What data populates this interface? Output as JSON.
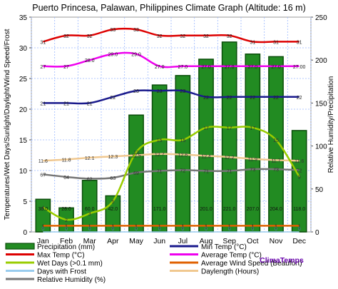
{
  "chart_data": {
    "type": "bar",
    "title": "Puerto Princesa, Palawan, Philippines Climate Graph (Altitude: 16 m)",
    "categories": [
      "Jan",
      "Feb",
      "Mar",
      "Apr",
      "May",
      "Jun",
      "Jul",
      "Aug",
      "Sep",
      "Oct",
      "Nov",
      "Dec"
    ],
    "ylabel_left": "Temperatures/Wet Days/Sunlight/Daylight/Wind Speed/Frost",
    "ylabel_right": "Relative Humidity/Precipitation",
    "ylim_left": [
      0,
      35
    ],
    "ylim_right": [
      0,
      250
    ],
    "left_ticks": [
      "0",
      "5",
      "10",
      "15",
      "20",
      "25",
      "30",
      "35"
    ],
    "right_ticks": [
      "0",
      "50",
      "100",
      "150",
      "200",
      "250"
    ],
    "grid": true,
    "series": [
      {
        "name": "Precipitation (mm)",
        "kind": "bar",
        "axis": "right",
        "color": "#228b22",
        "values": [
          38.0,
          28.0,
          60.0,
          42.0,
          136.0,
          171.0,
          182.0,
          201.0,
          221.0,
          207.0,
          204.0,
          118.0
        ],
        "labels": [
          "38.0",
          "28.0",
          "60.0",
          "42.0",
          "",
          "171.0",
          "",
          "201.0",
          "221.0",
          "207.0",
          "204.0",
          "118.0"
        ]
      },
      {
        "name": "Max Temp (°C)",
        "kind": "line",
        "axis": "left",
        "color": "#dd0000",
        "values": [
          31,
          32,
          32,
          33,
          33,
          32,
          32,
          32,
          32,
          31,
          31,
          31
        ],
        "labels": [
          "31",
          "32",
          "32",
          "33",
          "33",
          "32",
          "32",
          "32",
          "32",
          "31",
          "31",
          "31"
        ]
      },
      {
        "name": "Min Temp (°C)",
        "kind": "line",
        "axis": "left",
        "color": "#1a1a8c",
        "values": [
          21,
          21,
          21,
          22,
          23,
          23,
          23,
          22,
          22,
          22,
          22,
          22
        ],
        "labels": [
          "21",
          "21",
          "21",
          "22",
          "23",
          "23",
          "23",
          "22",
          "22",
          "22",
          "22",
          "22"
        ]
      },
      {
        "name": "Average Temp (°C)",
        "kind": "line",
        "axis": "left",
        "color": "#ee00ee",
        "values": [
          27.0,
          27.0,
          28.0,
          29.0,
          29.0,
          27.0,
          27.0,
          27.0,
          27.0,
          27.0,
          27.0,
          27.0
        ],
        "labels": [
          "27",
          "27",
          "28.0",
          "29.0",
          "29.0",
          "27.0",
          "27.0",
          "27.0",
          "27.0",
          "27.0",
          "27.0",
          "27.00"
        ]
      },
      {
        "name": "Wet Days (>0.1 mm)",
        "kind": "line",
        "axis": "left",
        "color": "#99cc00",
        "values": [
          4,
          2,
          3,
          5,
          13,
          15,
          15,
          17,
          17,
          17,
          15,
          9
        ],
        "labels": [
          "4",
          "2",
          "3",
          "5",
          "13",
          "15",
          "15",
          "17",
          "17",
          "17",
          "15",
          "9"
        ]
      },
      {
        "name": "Average Wind Speed (Beaufort)",
        "kind": "line",
        "axis": "left",
        "color": "#e06000",
        "values": [
          1,
          1,
          1,
          1,
          1,
          1,
          1,
          1,
          1,
          1,
          1,
          1
        ],
        "labels": [
          "1",
          "1",
          "1",
          "1",
          "1",
          "1",
          "1",
          "1",
          "1",
          "1",
          "1",
          "1"
        ]
      },
      {
        "name": "Days with Frost",
        "kind": "line",
        "axis": "left",
        "color": "#99ccee",
        "values": [
          0,
          0,
          0,
          0,
          0,
          0,
          0,
          0,
          0,
          0,
          0,
          0
        ],
        "labels": [
          "0",
          "0",
          "0",
          "0",
          "0",
          "0",
          "0",
          "0",
          "0",
          "0",
          "0",
          "0"
        ]
      },
      {
        "name": "Daylength (Hours)",
        "kind": "line",
        "axis": "left",
        "color": "#f0c890",
        "values": [
          11.6,
          11.8,
          12.1,
          12.3,
          12.5,
          12.7,
          12.6,
          12.4,
          12.2,
          11.9,
          11.7,
          11.6
        ],
        "labels": [
          "11.6",
          "11.8",
          "12.1",
          "12.3",
          "12.5",
          "12.7",
          "12.6",
          "12.4",
          "12.2",
          "11.9",
          "11.7",
          "11.6"
        ]
      },
      {
        "name": "Relative Humidity (%)",
        "kind": "line",
        "axis": "right",
        "color": "#777777",
        "values": [
          67,
          64,
          62,
          63,
          69,
          71,
          72,
          71,
          71,
          73,
          73,
          72
        ],
        "labels": [
          "67",
          "64",
          "62",
          "63",
          "69",
          "71",
          "72",
          "71",
          "71",
          "73",
          "73",
          "72"
        ]
      }
    ],
    "legend": {
      "position": "bottom",
      "items": [
        {
          "name": "Precipitation (mm)",
          "color": "#228b22",
          "kind": "bar"
        },
        {
          "name": "Min Temp (°C)",
          "color": "#1a1a8c",
          "kind": "line"
        },
        {
          "name": "Max Temp (°C)",
          "color": "#dd0000",
          "kind": "line"
        },
        {
          "name": "Average Temp (°C)",
          "color": "#ee00ee",
          "kind": "line"
        },
        {
          "name": "Wet Days (>0.1 mm)",
          "color": "#99cc00",
          "kind": "line"
        },
        {
          "name": "Average Wind Speed (Beaufort)",
          "color": "#e06000",
          "kind": "line"
        },
        {
          "name": "Days with Frost",
          "color": "#99ccee",
          "kind": "line"
        },
        {
          "name": "Daylength (Hours)",
          "color": "#f0c890",
          "kind": "line"
        },
        {
          "name": "Relative Humidity (%)",
          "color": "#777777",
          "kind": "line"
        }
      ]
    },
    "brand": "ClimaTemps",
    "brand_color": "#6600aa"
  }
}
